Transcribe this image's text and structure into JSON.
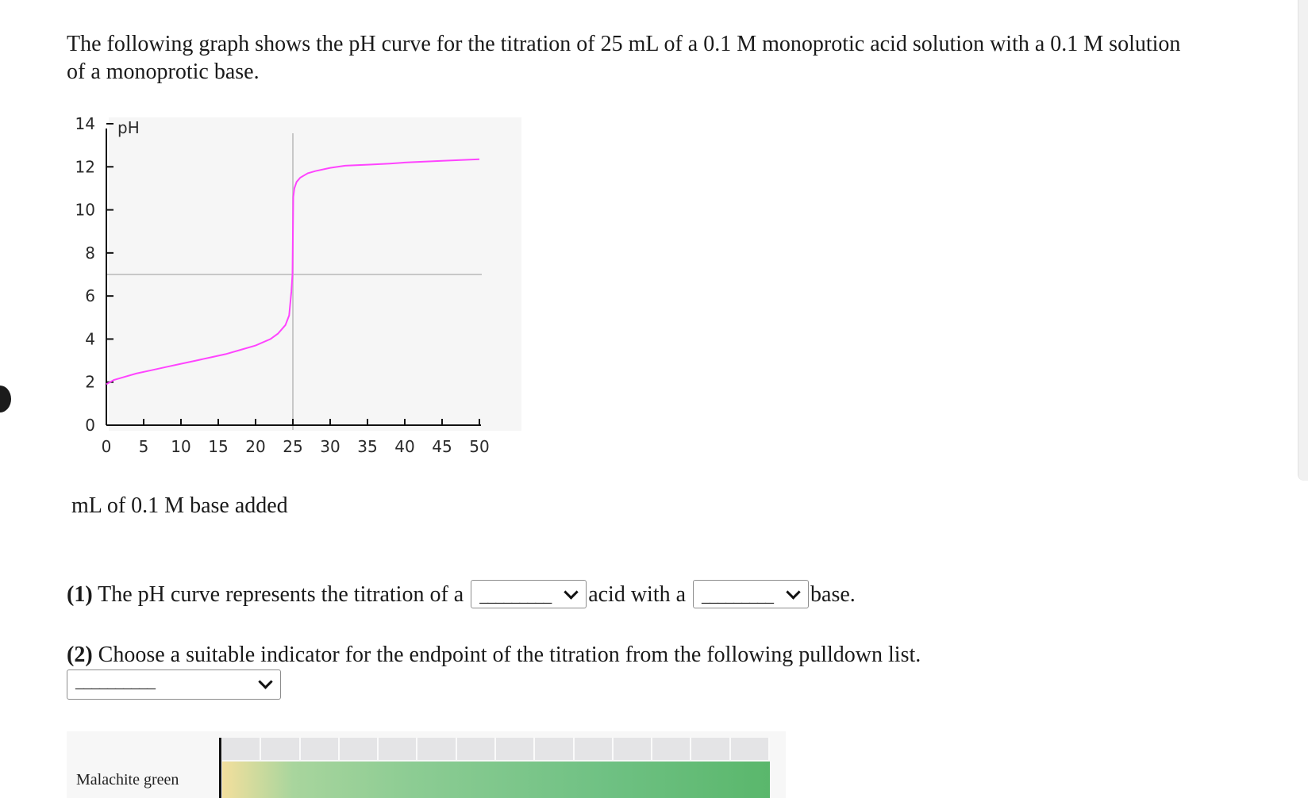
{
  "question": {
    "intro": "The following graph shows the pH curve for the titration of 25 mL of a 0.1 M monoprotic acid solution with a 0.1 M solution of a monoprotic base.",
    "q1_prefix": "(1)",
    "q1_text_a": " The pH curve represents the titration of a",
    "q1_text_b": "acid with a",
    "q1_text_c": "base.",
    "select1_value": "_________",
    "select2_value": "_________",
    "q2_prefix": "(2)",
    "q2_text": " Choose a suitable indicator for the endpoint of the titration from the following pulldown list.",
    "select3_value": "__________",
    "indicator_name": "Malachite green"
  },
  "chart_data": {
    "type": "line",
    "ylabel": "pH",
    "xlabel": "mL of 0.1 M base added",
    "xlim": [
      0,
      50
    ],
    "ylim": [
      0,
      14
    ],
    "x_ticks": [
      0,
      5,
      10,
      15,
      20,
      25,
      30,
      35,
      40,
      45,
      50
    ],
    "y_ticks": [
      0,
      2,
      4,
      6,
      8,
      10,
      12,
      14
    ],
    "reference_lines": {
      "vertical_x": 25,
      "horizontal_y": 7
    },
    "colors": {
      "curve": "#ff44ff",
      "reference": "#c8c8c8"
    },
    "series": [
      {
        "x": [
          0,
          1,
          2,
          4,
          6,
          8,
          10,
          12,
          14,
          16,
          18,
          20,
          22,
          23,
          24,
          24.5,
          24.8,
          24.95,
          25.05,
          25.2,
          25.5,
          26,
          27,
          28,
          30,
          32,
          35,
          38,
          40,
          45,
          50
        ],
        "y": [
          1.9,
          2.1,
          2.2,
          2.4,
          2.55,
          2.7,
          2.85,
          3.0,
          3.15,
          3.3,
          3.5,
          3.7,
          4.0,
          4.25,
          4.65,
          5.1,
          6.2,
          7.0,
          10.6,
          11.0,
          11.3,
          11.5,
          11.7,
          11.8,
          11.95,
          12.05,
          12.1,
          12.15,
          12.2,
          12.28,
          12.35
        ]
      }
    ]
  }
}
